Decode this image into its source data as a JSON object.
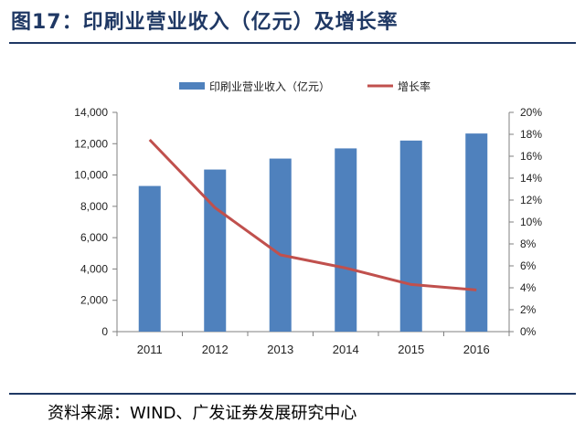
{
  "figure": {
    "title": "图17：印刷业营业收入（亿元）及增长率",
    "source": "资料来源：WIND、广发证券发展研究中心"
  },
  "chart_data": {
    "type": "bar",
    "categories": [
      "2011",
      "2012",
      "2013",
      "2014",
      "2015",
      "2016"
    ],
    "series": [
      {
        "name": "印刷业营业收入（亿元）",
        "type": "bar",
        "axis": "left",
        "values": [
          9300,
          10350,
          11050,
          11700,
          12200,
          12650
        ]
      },
      {
        "name": "增长率",
        "type": "line",
        "axis": "right",
        "values": [
          17.5,
          11.3,
          7.0,
          5.8,
          4.3,
          3.8
        ]
      }
    ],
    "y_left": {
      "range": [
        0,
        14000
      ],
      "ticks": [
        0,
        2000,
        4000,
        6000,
        8000,
        10000,
        12000,
        14000
      ],
      "tick_labels": [
        "0",
        "2,000",
        "4,000",
        "6,000",
        "8,000",
        "10,000",
        "12,000",
        "14,000"
      ]
    },
    "y_right": {
      "range": [
        0,
        20
      ],
      "ticks": [
        0,
        2,
        4,
        6,
        8,
        10,
        12,
        14,
        16,
        18,
        20
      ],
      "tick_labels": [
        "0%",
        "2%",
        "4%",
        "6%",
        "8%",
        "10%",
        "12%",
        "14%",
        "16%",
        "18%",
        "20%"
      ]
    },
    "grid": false,
    "legend_position": "top",
    "colors": {
      "bar": "#4f81bd",
      "line": "#c0504d",
      "axis": "#808080"
    }
  }
}
